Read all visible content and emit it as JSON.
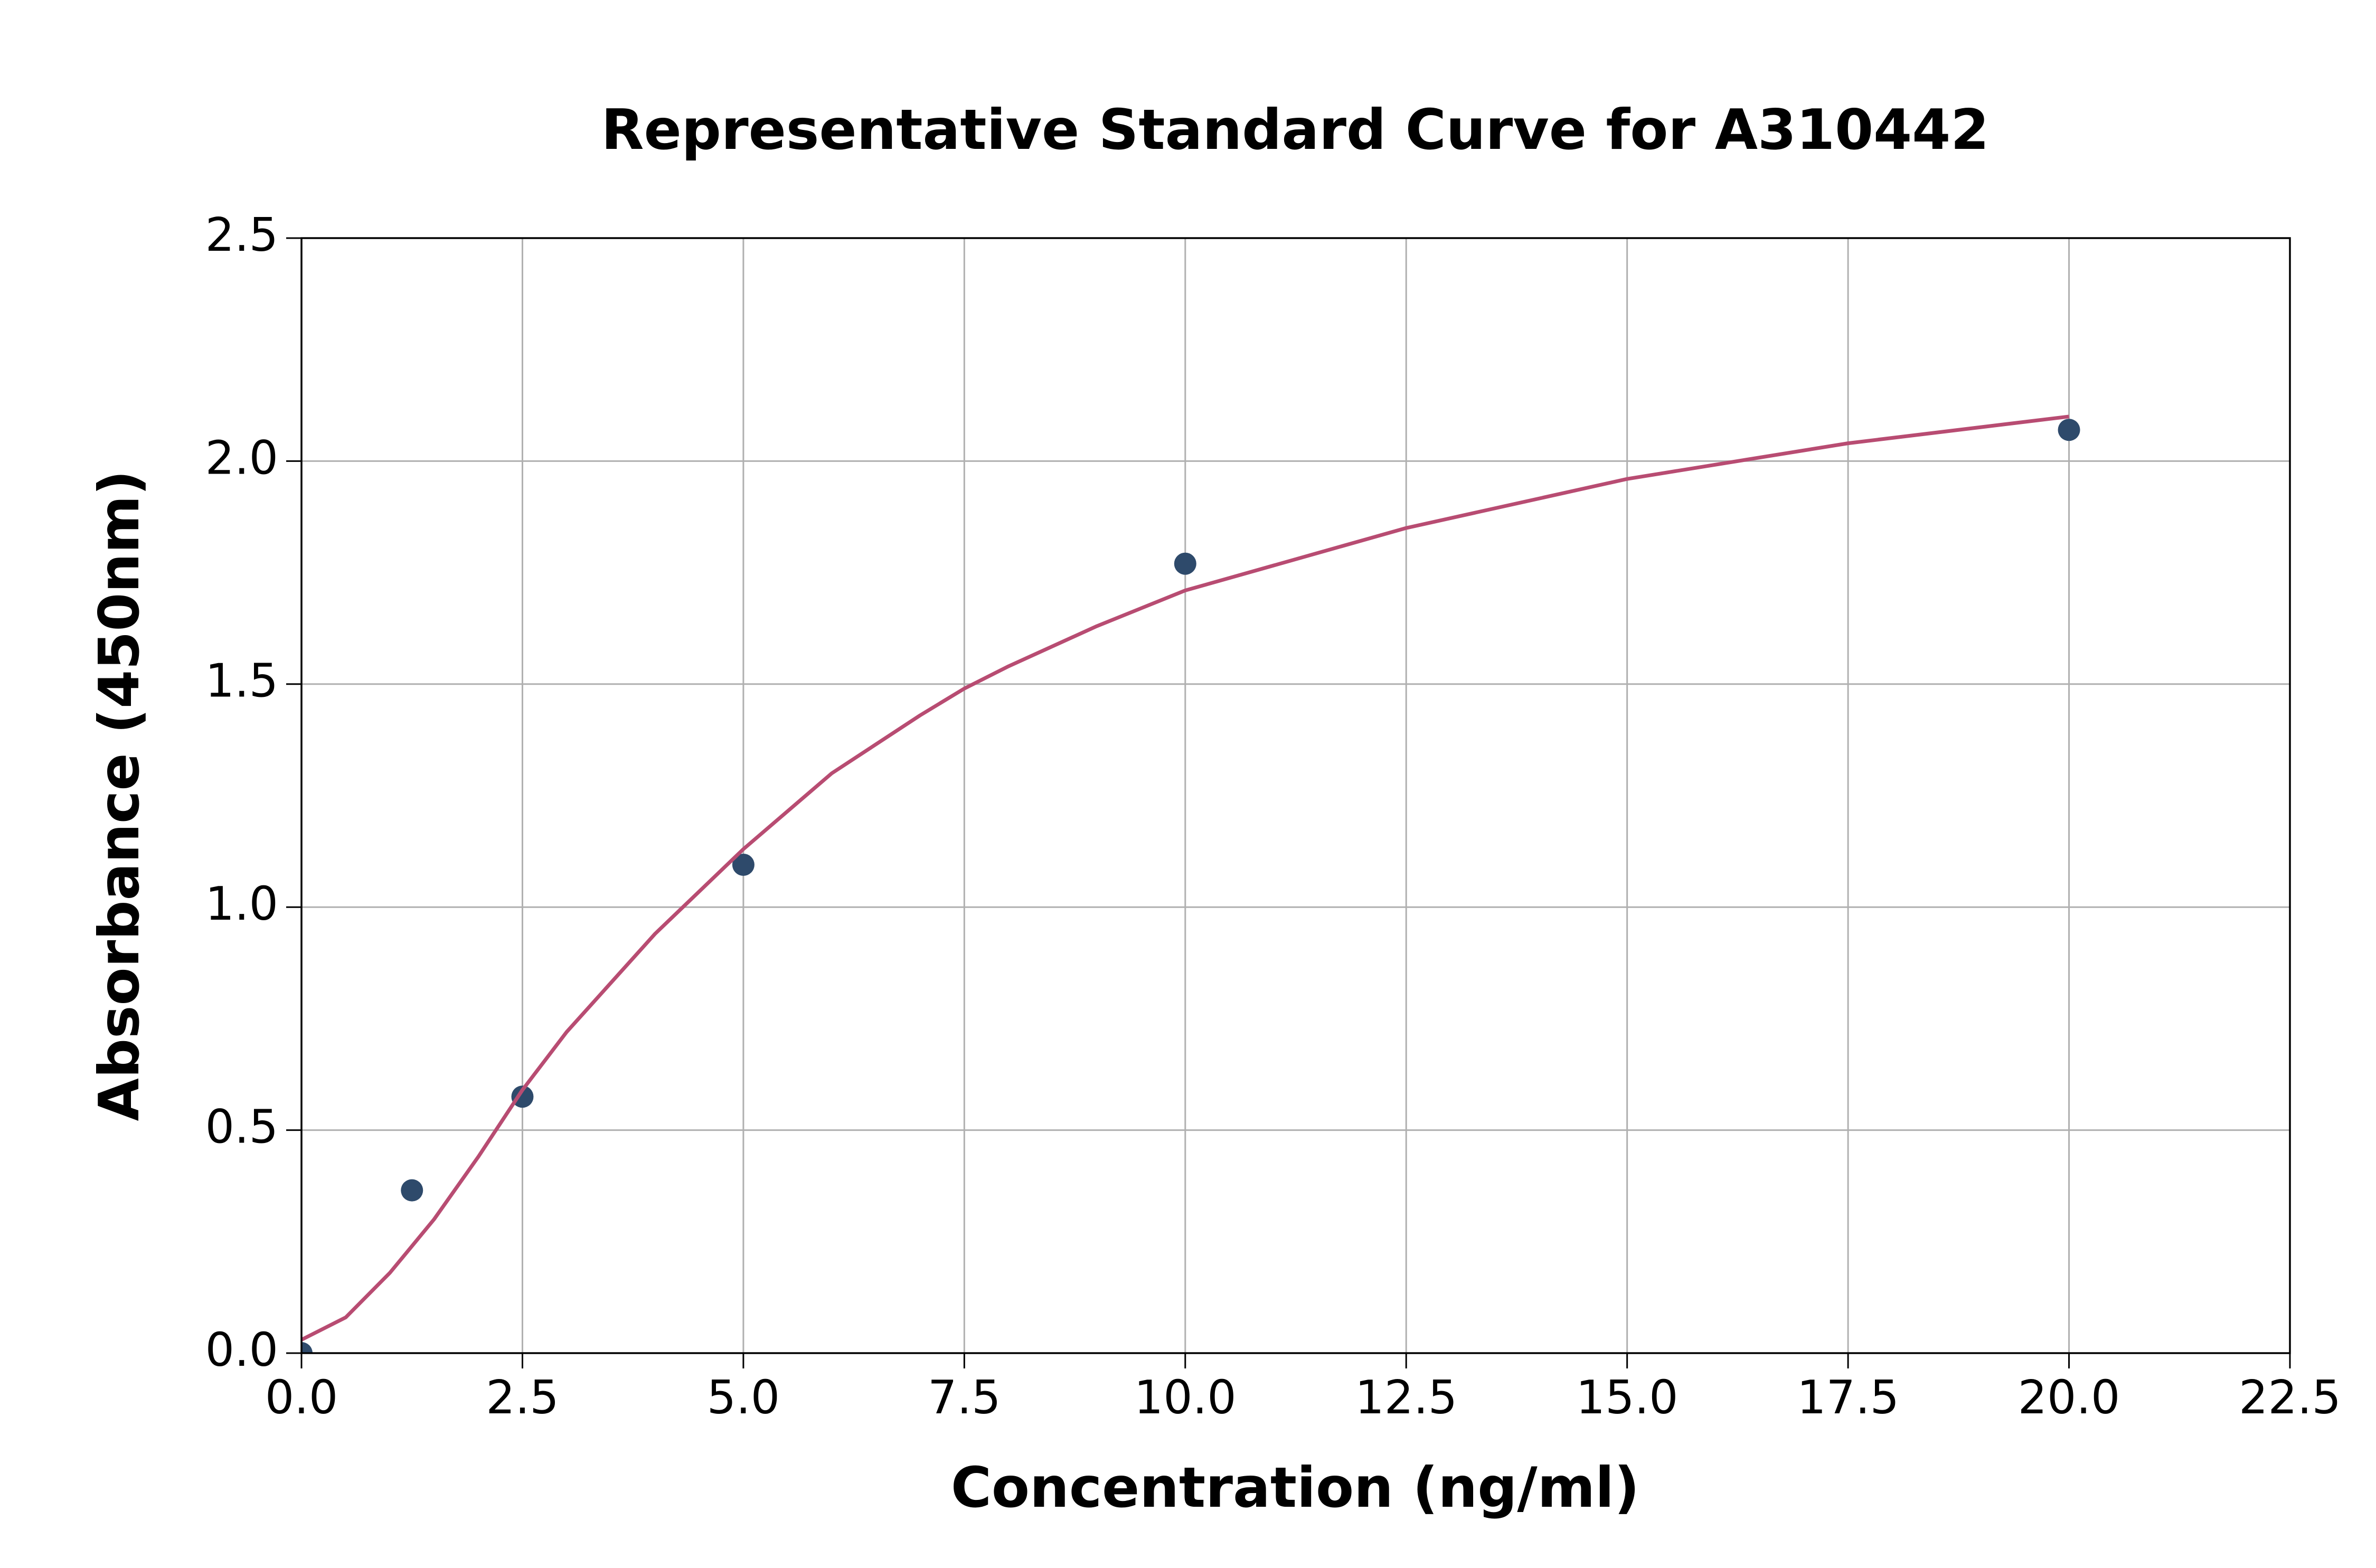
{
  "chart_data": {
    "type": "scatter",
    "title": "Representative Standard Curve for A310442",
    "xlabel": "Concentration (ng/ml)",
    "ylabel": "Absorbance (450nm)",
    "series": [
      {
        "type": "scatter",
        "color": "#2e4a6b",
        "x": [
          0,
          1.25,
          2.5,
          5,
          10,
          20
        ],
        "values": [
          0,
          0.365,
          0.575,
          1.095,
          1.77,
          2.07
        ]
      },
      {
        "type": "line",
        "color": "#b84c72",
        "x": [
          0,
          0.5,
          1,
          1.5,
          2,
          2.5,
          3,
          4,
          5,
          6,
          7,
          7.5,
          8,
          9,
          10,
          12.5,
          15,
          17.5,
          20
        ],
        "values": [
          0.03,
          0.08,
          0.18,
          0.3,
          0.44,
          0.59,
          0.72,
          0.94,
          1.13,
          1.3,
          1.43,
          1.49,
          1.54,
          1.63,
          1.71,
          1.85,
          1.96,
          2.04,
          2.1
        ]
      }
    ],
    "xlim": [
      0,
      22.5
    ],
    "ylim": [
      0,
      2.5
    ],
    "xticks": [
      {
        "value": 0,
        "label": "0.0"
      },
      2.5,
      {
        "value": 5,
        "label": "5.0"
      },
      7.5,
      {
        "value": 10,
        "label": "10.0"
      },
      12.5,
      {
        "value": 15,
        "label": "15.0"
      },
      17.5,
      {
        "value": 20,
        "label": "20.0"
      },
      22.5
    ],
    "yticks": [
      {
        "value": 0,
        "label": "0.0"
      },
      0.5,
      {
        "value": 1,
        "label": "1.0"
      },
      1.5,
      {
        "value": 2,
        "label": "2.0"
      },
      2.5
    ],
    "grid": true
  }
}
